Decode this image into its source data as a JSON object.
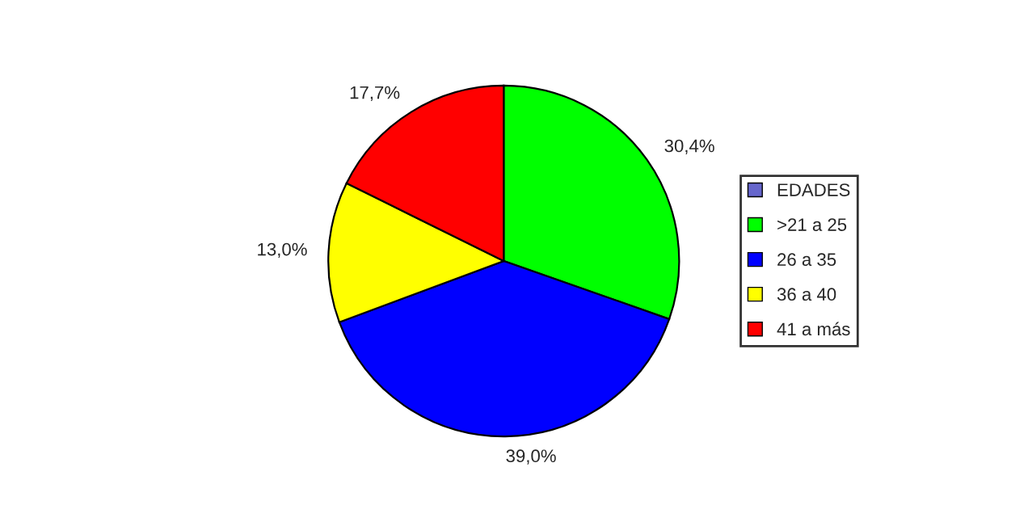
{
  "chart_data": {
    "type": "pie",
    "categories": [
      "EDADES",
      ">21 a 25",
      "26 a 35",
      "36 a 40",
      "41 a más"
    ],
    "values": [
      0,
      30.4,
      39.0,
      13.0,
      17.7
    ],
    "value_labels": [
      null,
      "30,4%",
      "39,0%",
      "13,0%",
      "17,7%"
    ],
    "colors": [
      "#6666cc",
      "#00ff00",
      "#0000ff",
      "#ffff00",
      "#ff0000"
    ],
    "legend": "right"
  }
}
